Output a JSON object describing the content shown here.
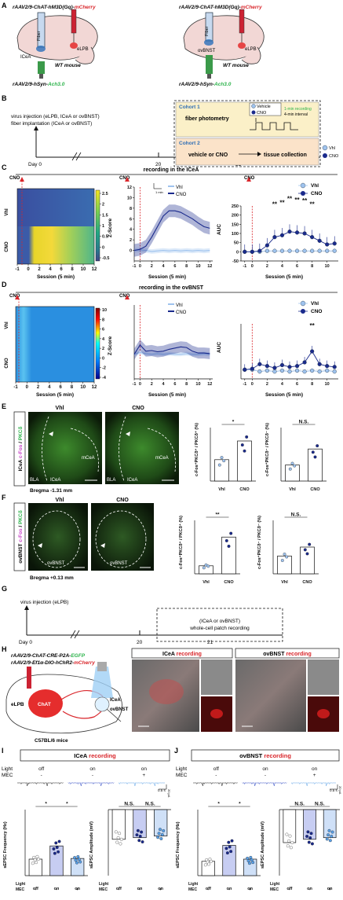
{
  "panels": {
    "A": {
      "letter": "A",
      "left": {
        "title_prefix": "rAAV2/9-ChAT-hM3D(Gq)-",
        "title_red": "mCherry",
        "fiber": "Fiber",
        "target": "ICeA",
        "site": "eLPB",
        "mouse": "WT mouse",
        "bottom_prefix": "rAAV2/9-hSyn-",
        "bottom_green": "Ach3.0"
      },
      "right": {
        "title_prefix": "rAAV2/9-ChAT-hM3D(Gq)-",
        "title_red": "mCherry",
        "fiber": "Fiber",
        "target": "ovBNST",
        "site": "eLPB",
        "mouse": "WT mouse",
        "bottom_prefix": "rAAV2/9-hSyn-",
        "bottom_green": "Ach3.0"
      }
    },
    "B": {
      "letter": "B",
      "line1": "virus injection (eLPB, ICeA or ovBNST)",
      "line2": "fiber implantation (ICeA or ovBNST)",
      "day0": "Day 0",
      "day20": "20",
      "day21": "21",
      "cohort1": "Cohort 1",
      "cohort1_body": "fiber photometry",
      "legend_vehicle": "Vehicle",
      "legend_cno": "CNO",
      "rec_note1": "1-min recording",
      "rec_note2": "4-min interval",
      "cohort2": "Cohort 2",
      "cohort2_body": "vehicle or CNO",
      "cohort2_end": "tissue collection",
      "leg_vhl": "Vhl",
      "leg_cno": "CNO"
    },
    "C": {
      "letter": "C",
      "header": "recording in the ICeA",
      "cno_tag": "CNO",
      "row_vhl": "Vhl",
      "row_cno": "CNO",
      "xlabel": "Session (5 min)",
      "colorbar_ticks": [
        "2.5",
        "2",
        "1.5",
        "1",
        "0.5",
        "0",
        "-0.5"
      ],
      "ylabel_z": "Z-Score",
      "ylabel_auc": "AUC",
      "leg_vhl": "Vhl",
      "leg_cno": "CNO",
      "scale_label": "1 min"
    },
    "D": {
      "letter": "D",
      "header": "recording in the ovBNST",
      "cno_tag": "CNO",
      "row_vhl": "Vhl",
      "row_cno": "CNO",
      "xlabel": "Session (5 min)",
      "colorbar_ticks": [
        "10",
        "8",
        "6",
        "4",
        "2",
        "0",
        "-2",
        "-4"
      ],
      "ylabel_z": "Z-Score",
      "ylabel_auc": "AUC",
      "leg_vhl": "Vhl",
      "leg_cno": "CNO"
    },
    "E": {
      "letter": "E",
      "side_label_a": "ICeA",
      "side_label_b": "c-Fos",
      "side_label_c": "PKCδ",
      "img1": "Vhl",
      "img2": "CNO",
      "bla": "BLA",
      "icea": "ICeA",
      "mcea": "mCeA",
      "bregma": "Bregma -1.31 mm",
      "sig1": "*",
      "sig2": "N.S.",
      "ylab1": "c-Fos⁺PKCδ⁺ / PKCδ⁺ (%)",
      "ylab2": "c-Fos⁺PKCδ⁻ / PKCδ⁻ (%)",
      "xcat": [
        "Vhl",
        "CNO"
      ]
    },
    "F": {
      "letter": "F",
      "side_label_a": "ovBNST",
      "side_label_b": "c-Fos",
      "side_label_c": "PKCδ",
      "img1": "Vhl",
      "img2": "CNO",
      "ovbnst": "ovBNST",
      "bregma": "Bregma +0.13 mm",
      "sig1": "**",
      "sig2": "N.S.",
      "ylab1": "c-Fos⁺PKCδ⁺ / PKCδ⁺ (%)",
      "ylab2": "c-Fos⁺PKCδ⁻ / PKCδ⁻ (%)",
      "xcat": [
        "Vhl",
        "CNO"
      ]
    },
    "G": {
      "letter": "G",
      "line1": "virus injection (eLPB)",
      "day0": "Day 0",
      "day20": "20",
      "day21": "21",
      "box1": "(ICeA or ovBNST)",
      "box2": "whole-cell patch recording"
    },
    "H": {
      "letter": "H",
      "line1_prefix": "rAAV2/9-ChAT-CRE-P2A-",
      "line1_green": "EGFP",
      "line2_prefix": "rAAV2/9-Ef1α-DIO-hChR2-",
      "line2_red": "mCherry",
      "chat": "ChAT",
      "elpb": "eLPB",
      "icea": "ICeA",
      "ovbnst": "ovBNST",
      "mouse": "C57BL/6 mice",
      "rec1_prefix": "ICeA ",
      "rec1_red": "recording",
      "rec2_prefix": "ovBNST ",
      "rec2_red": "recording"
    },
    "I": {
      "letter": "I",
      "header_prefix": "ICeA ",
      "header_red": "recording",
      "light": "Light",
      "mec": "MEC",
      "light_vals": [
        "off",
        "on",
        "on"
      ],
      "mec_vals": [
        "-",
        "-",
        "+"
      ],
      "ylab1": "sEPSC Frequency (Hz)",
      "ylab2": "sEPSC Amplitude (mV)",
      "sig_freq": [
        "*",
        "*"
      ],
      "sig_amp": [
        "N.S.",
        "N.S."
      ],
      "scale": "0.5 s",
      "scale_v": "20 pA"
    },
    "J": {
      "letter": "J",
      "header_prefix": "ovBNST ",
      "header_red": "recording",
      "light": "Light",
      "mec": "MEC",
      "light_vals": [
        "off",
        "on",
        "on"
      ],
      "mec_vals": [
        "-",
        "-",
        "+"
      ],
      "ylab1": "sEPSC Frequency (Hz)",
      "ylab2": "sEPSC Amplitude (mV)",
      "sig_freq": [
        "*",
        "*"
      ],
      "sig_amp": [
        "N.S.",
        "N.S."
      ],
      "scale": "0.5 s",
      "scale_v": "20 pA"
    }
  },
  "colors": {
    "red": "#d9262b",
    "green": "#2bb34a",
    "navy": "#1a2a8c",
    "light_blue": "#9fc3ee",
    "cohort1_bg": "#fbf0c8",
    "cohort2_bg": "#fbe3c9"
  },
  "chart_data": [
    {
      "id": "C-zscore",
      "type": "line",
      "x": [
        -1,
        0,
        1,
        2,
        3,
        4,
        5,
        6,
        7,
        8,
        9,
        10,
        11,
        12
      ],
      "xlim": [
        -1,
        12.5
      ],
      "ylim": [
        -2,
        12
      ],
      "yticks": [
        0,
        2,
        4,
        6,
        8,
        10,
        12
      ],
      "xlabel": "Session (5 min)",
      "ylabel": "Z-Score",
      "series": [
        {
          "name": "Vhl",
          "values": [
            0,
            0.1,
            0,
            -0.2,
            -0.1,
            0,
            -0.1,
            0,
            -0.1,
            0,
            -0.1,
            0,
            -0.1,
            0
          ]
        },
        {
          "name": "CNO",
          "values": [
            0,
            0.2,
            0.8,
            2.5,
            4.5,
            6.5,
            7.5,
            7.5,
            7.2,
            6.6,
            6.0,
            5.2,
            4.5,
            4.2
          ]
        }
      ]
    },
    {
      "id": "C-auc",
      "type": "line",
      "x": [
        -1,
        0,
        1,
        2,
        3,
        4,
        5,
        6,
        7,
        8,
        9,
        10,
        11
      ],
      "xlim": [
        -1.5,
        11.5
      ],
      "ylim": [
        -50,
        250
      ],
      "yticks": [
        -50,
        0,
        50,
        100,
        150,
        200,
        250
      ],
      "xlabel": "Session (5 min)",
      "ylabel": "AUC",
      "annotations": [
        "**",
        "**",
        "**",
        "**",
        "**",
        "**"
      ],
      "series": [
        {
          "name": "Vhl",
          "values": [
            0,
            0,
            0,
            5,
            5,
            5,
            5,
            5,
            5,
            5,
            5,
            5,
            5
          ]
        },
        {
          "name": "CNO",
          "values": [
            0,
            0,
            5,
            35,
            80,
            90,
            110,
            105,
            100,
            80,
            60,
            40,
            45
          ]
        }
      ]
    },
    {
      "id": "D-zscore",
      "type": "line",
      "x": [
        -1,
        0,
        1,
        2,
        3,
        4,
        5,
        6,
        7,
        8,
        9,
        10,
        11,
        12
      ],
      "xlim": [
        -1,
        12.5
      ],
      "ylim": [
        -4,
        8
      ],
      "xlabel": "Session (5 min)",
      "ylabel": "Z-Score",
      "series": [
        {
          "name": "Vhl",
          "values": [
            0,
            0.3,
            0.1,
            0,
            0.1,
            0,
            0.1,
            0,
            0,
            0.1,
            0,
            0,
            0.1,
            0
          ]
        },
        {
          "name": "CNO",
          "values": [
            0,
            1.5,
            0.5,
            0.6,
            0.4,
            0.5,
            0.8,
            1.0,
            1.2,
            1.1,
            0.5,
            0.2,
            0.2,
            0.1
          ]
        }
      ]
    },
    {
      "id": "D-auc",
      "type": "line",
      "x": [
        -1,
        0,
        1,
        2,
        3,
        4,
        5,
        6,
        7,
        8,
        9,
        10,
        11
      ],
      "xlim": [
        -1.5,
        11.5
      ],
      "ylim": [
        -50,
        250
      ],
      "xlabel": "Session (5 min)",
      "ylabel": "AUC",
      "annotations": [
        "**"
      ],
      "series": [
        {
          "name": "Vhl",
          "values": [
            0,
            0,
            -10,
            -5,
            -10,
            -5,
            -10,
            -5,
            -10,
            -5,
            -10,
            -5,
            -10
          ]
        },
        {
          "name": "CNO",
          "values": [
            0,
            5,
            30,
            20,
            10,
            25,
            15,
            20,
            40,
            100,
            30,
            20,
            15
          ]
        }
      ]
    },
    {
      "id": "E-bar1",
      "type": "bar",
      "categories": [
        "Vhl",
        "CNO"
      ],
      "values": [
        40,
        75
      ],
      "ylim": [
        0,
        100
      ],
      "ylabel": "c-Fos⁺PKCδ⁺ / PKCδ⁺ (%)"
    },
    {
      "id": "E-bar2",
      "type": "bar",
      "categories": [
        "Vhl",
        "CNO"
      ],
      "values": [
        30,
        60
      ],
      "ylim": [
        0,
        100
      ],
      "ylabel": "c-Fos⁺PKCδ⁻ / PKCδ⁻ (%)"
    },
    {
      "id": "F-bar1",
      "type": "bar",
      "categories": [
        "Vhl",
        "CNO"
      ],
      "values": [
        12,
        55
      ],
      "ylim": [
        0,
        80
      ],
      "ylabel": "c-Fos⁺PKCδ⁺ / PKCδ⁺ (%)"
    },
    {
      "id": "F-bar2",
      "type": "bar",
      "categories": [
        "Vhl",
        "CNO"
      ],
      "values": [
        2,
        3
      ],
      "ylim": [
        0,
        6
      ],
      "ylabel": "c-Fos⁺PKCδ⁻ / PKCδ⁻ (%)"
    },
    {
      "id": "I-freq",
      "type": "bar",
      "categories": [
        "off",
        "on",
        "on"
      ],
      "values": [
        2.5,
        4.5,
        2.6
      ],
      "ylim": [
        0,
        10
      ],
      "ylabel": "sEPSC Frequency (Hz)"
    },
    {
      "id": "I-amp",
      "type": "bar",
      "categories": [
        "off",
        "on",
        "on"
      ],
      "values": [
        -18,
        -17,
        -16
      ],
      "ylim": [
        -40,
        0
      ],
      "ylabel": "sEPSC Amplitude (mV)"
    },
    {
      "id": "J-freq",
      "type": "bar",
      "categories": [
        "off",
        "on",
        "on"
      ],
      "values": [
        2.6,
        5.5,
        3.0
      ],
      "ylim": [
        0,
        12
      ],
      "ylabel": "sEPSC Frequency (Hz)"
    },
    {
      "id": "J-amp",
      "type": "bar",
      "categories": [
        "off",
        "on",
        "on"
      ],
      "values": [
        -20,
        -18,
        -17
      ],
      "ylim": [
        -40,
        0
      ],
      "ylabel": "sEPSC Amplitude (mV)"
    }
  ]
}
